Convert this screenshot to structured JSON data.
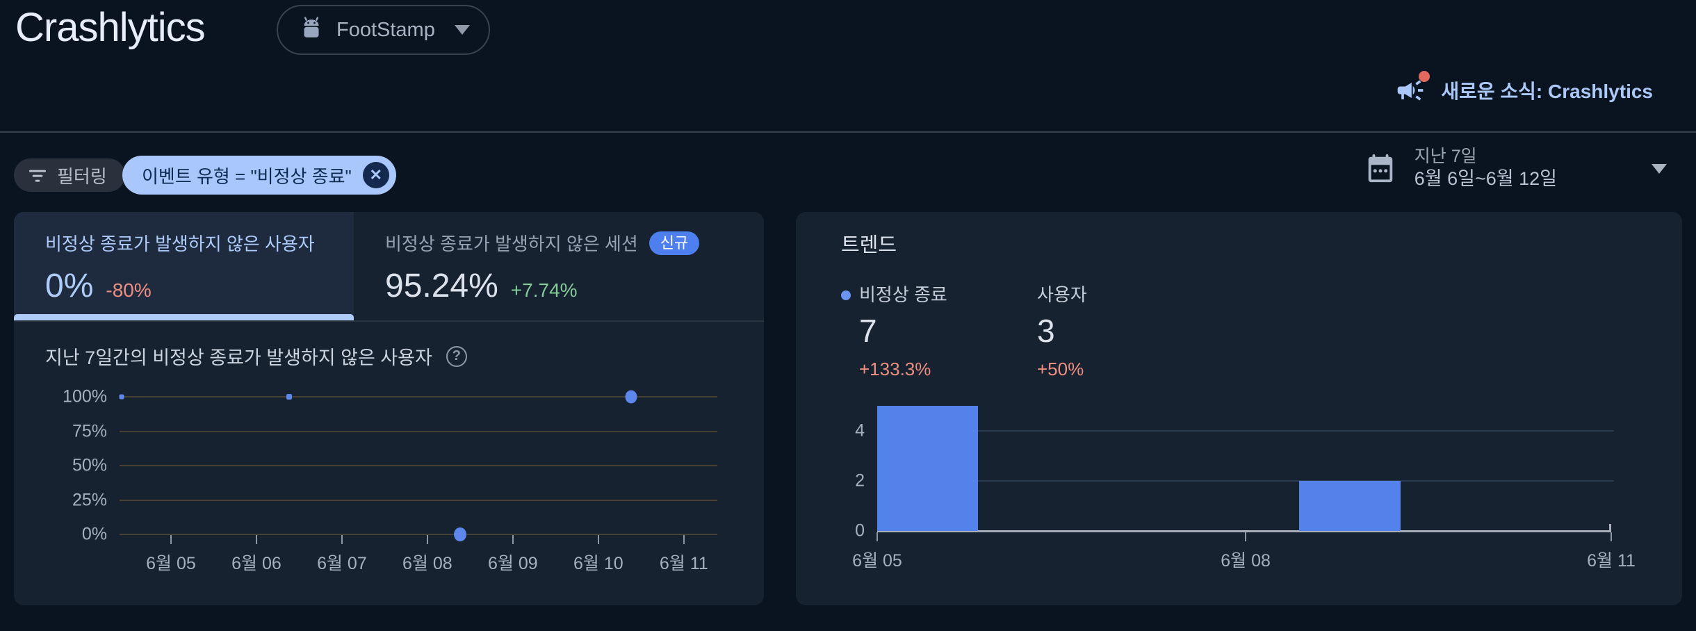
{
  "colors": {
    "accent_blue": "#5383ea",
    "light_blue": "#aecbfa",
    "chip_bg": "#a9c7fa",
    "negative_red": "#ee8e80",
    "positive_green": "#84cb98",
    "badge_blue": "#4d7fee",
    "card_bg": "#172231",
    "page_bg": "#0a1420"
  },
  "header": {
    "title": "Crashlytics",
    "app_selector": {
      "label": "FootStamp",
      "icon": "android-icon"
    },
    "whats_new": "새로운 소식: Crashlytics"
  },
  "filters": {
    "filter_button": "필터링",
    "chip": "이벤트 유형 = \"비정상 종료\"",
    "date_range": {
      "line1": "지난 7일",
      "line2": "6월 6일~6월 12일"
    }
  },
  "crash_free_card": {
    "tabs": [
      {
        "label": "비정상 종료가 발생하지 않은 사용자",
        "value": "0%",
        "delta": "-80%",
        "active": true
      },
      {
        "label": "비정상 종료가 발생하지 않은 세션",
        "badge": "신규",
        "value": "95.24%",
        "delta": "+7.74%",
        "active": false
      }
    ],
    "chart_title": "지난 7일간의 비정상 종료가 발생하지 않은 사용자"
  },
  "trend_card": {
    "title": "트렌드",
    "legend": [
      {
        "label": "비정상 종료",
        "value": "7",
        "delta": "+133.3%"
      },
      {
        "label": "사용자",
        "value": "3",
        "delta": "+50%"
      }
    ]
  },
  "chart_data": [
    {
      "id": "crash_free_users",
      "type": "scatter",
      "title": "지난 7일간의 비정상 종료가 발생하지 않은 사용자",
      "ylim": [
        0,
        100
      ],
      "y_ticks": [
        "100%",
        "75%",
        "50%",
        "25%",
        "0%"
      ],
      "x_ticks": [
        {
          "label": "6월 05",
          "pct": 8.6
        },
        {
          "label": "6월 06",
          "pct": 22.9
        },
        {
          "label": "6월 07",
          "pct": 37.2
        },
        {
          "label": "6월 08",
          "pct": 51.5
        },
        {
          "label": "6월 09",
          "pct": 65.8
        },
        {
          "label": "6월 10",
          "pct": 80.1
        },
        {
          "label": "6월 11",
          "pct": 94.4
        }
      ],
      "points": [
        {
          "date": "6월 05",
          "value": 100,
          "x_pct": 0.3,
          "size": 7
        },
        {
          "date": "6월 06",
          "value": 100,
          "x_pct": 28.4,
          "size": 8
        },
        {
          "date": "6월 08",
          "value": 0,
          "x_pct": 57.0,
          "size": 18
        },
        {
          "date": "6월 10",
          "value": 100,
          "x_pct": 85.6,
          "size": 17
        }
      ],
      "point_color": "#5d87ea",
      "grid": true,
      "legend_position": "none"
    },
    {
      "id": "trend",
      "type": "bar",
      "title": "트렌드",
      "series_totals": [
        {
          "name": "비정상 종료",
          "total": 7,
          "delta": "+133.3%"
        },
        {
          "name": "사용자",
          "total": 3,
          "delta": "+50%"
        }
      ],
      "ylim": [
        0,
        5
      ],
      "y_ticks": [
        0,
        2,
        4
      ],
      "x_ticks": [
        {
          "label": "6월 05",
          "pct": 0
        },
        {
          "label": "6월 08",
          "pct": 50.2
        },
        {
          "label": "6월 11",
          "pct": 100
        }
      ],
      "bars": [
        {
          "date": "6월 05",
          "value": 5,
          "x_pct": 0,
          "w_pct": 13.7
        },
        {
          "date": "6월 09",
          "value": 2,
          "x_pct": 57.5,
          "w_pct": 13.8
        }
      ],
      "bar_color": "#5383ea",
      "grid": true
    }
  ]
}
